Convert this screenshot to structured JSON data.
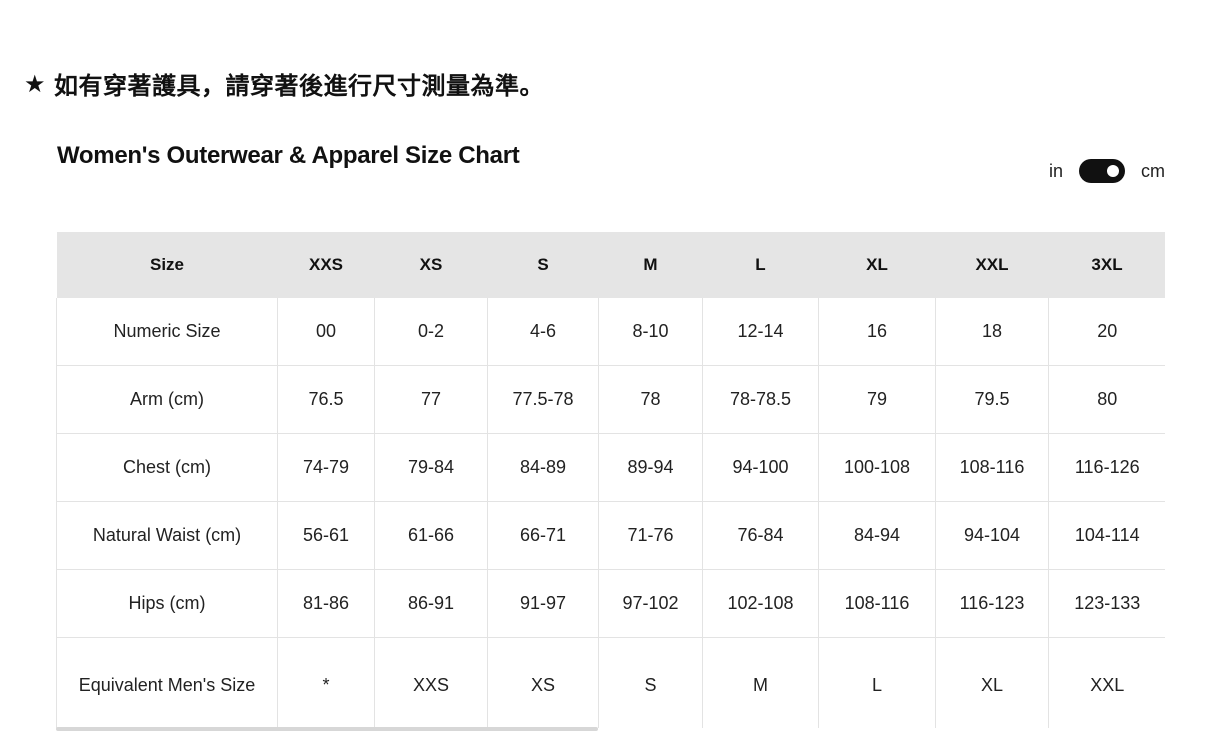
{
  "notice": {
    "star": "★",
    "text": "如有穿著護具，請穿著後進行尺寸測量為準。"
  },
  "chart": {
    "title": "Women's Outerwear & Apparel Size Chart"
  },
  "unit_toggle": {
    "left_label": "in",
    "right_label": "cm",
    "selected": "cm"
  },
  "table": {
    "header": {
      "label": "Size",
      "sizes": [
        "XXS",
        "XS",
        "S",
        "M",
        "L",
        "XL",
        "XXL",
        "3XL"
      ]
    },
    "rows": [
      {
        "label": "Numeric Size",
        "values": [
          "00",
          "0-2",
          "4-6",
          "8-10",
          "12-14",
          "16",
          "18",
          "20"
        ]
      },
      {
        "label": "Arm (cm)",
        "values": [
          "76.5",
          "77",
          "77.5-78",
          "78",
          "78-78.5",
          "79",
          "79.5",
          "80"
        ]
      },
      {
        "label": "Chest (cm)",
        "values": [
          "74-79",
          "79-84",
          "84-89",
          "89-94",
          "94-100",
          "100-108",
          "108-116",
          "116-126"
        ]
      },
      {
        "label": "Natural Waist (cm)",
        "values": [
          "56-61",
          "61-66",
          "66-71",
          "71-76",
          "76-84",
          "84-94",
          "94-104",
          "104-114"
        ]
      },
      {
        "label": "Hips (cm)",
        "values": [
          "81-86",
          "86-91",
          "91-97",
          "97-102",
          "102-108",
          "108-116",
          "116-123",
          "123-133"
        ]
      },
      {
        "label": "Equivalent Men's Size",
        "values": [
          "*",
          "XXS",
          "XS",
          "S",
          "M",
          "L",
          "XL",
          "XXL"
        ]
      }
    ]
  }
}
